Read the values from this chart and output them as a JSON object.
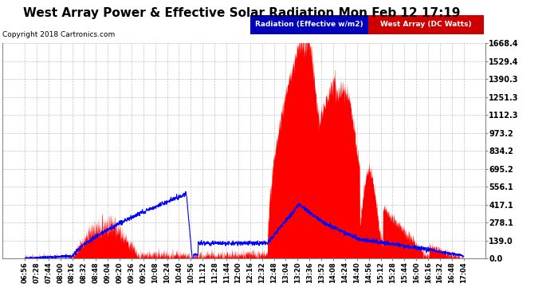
{
  "title": "West Array Power & Effective Solar Radiation Mon Feb 12 17:19",
  "copyright": "Copyright 2018 Cartronics.com",
  "legend_radiation": "Radiation (Effective w/m2)",
  "legend_west": "West Array (DC Watts)",
  "radiation_color": "#0000ff",
  "west_color": "#ff0000",
  "legend_radiation_bg": "#0000bb",
  "legend_west_bg": "#cc0000",
  "ylim": [
    0,
    1668.4
  ],
  "yticks": [
    0.0,
    139.0,
    278.1,
    417.1,
    556.1,
    695.2,
    834.2,
    973.2,
    1112.3,
    1251.3,
    1390.3,
    1529.4,
    1668.4
  ],
  "bg_color": "#ffffff",
  "plot_bg_color": "#ffffff",
  "grid_color": "#999999",
  "title_fontsize": 11,
  "copyright_fontsize": 6.5,
  "xtick_fontsize": 6,
  "ytick_fontsize": 7,
  "x_labels": [
    "06:56",
    "07:28",
    "07:44",
    "08:00",
    "08:16",
    "08:32",
    "08:48",
    "09:04",
    "09:20",
    "09:36",
    "09:52",
    "10:08",
    "10:24",
    "10:40",
    "10:56",
    "11:12",
    "11:28",
    "11:44",
    "12:00",
    "12:16",
    "12:32",
    "12:48",
    "13:04",
    "13:20",
    "13:36",
    "13:52",
    "14:08",
    "14:24",
    "14:40",
    "14:56",
    "15:12",
    "15:28",
    "15:44",
    "16:00",
    "16:16",
    "16:32",
    "16:48",
    "17:04"
  ]
}
